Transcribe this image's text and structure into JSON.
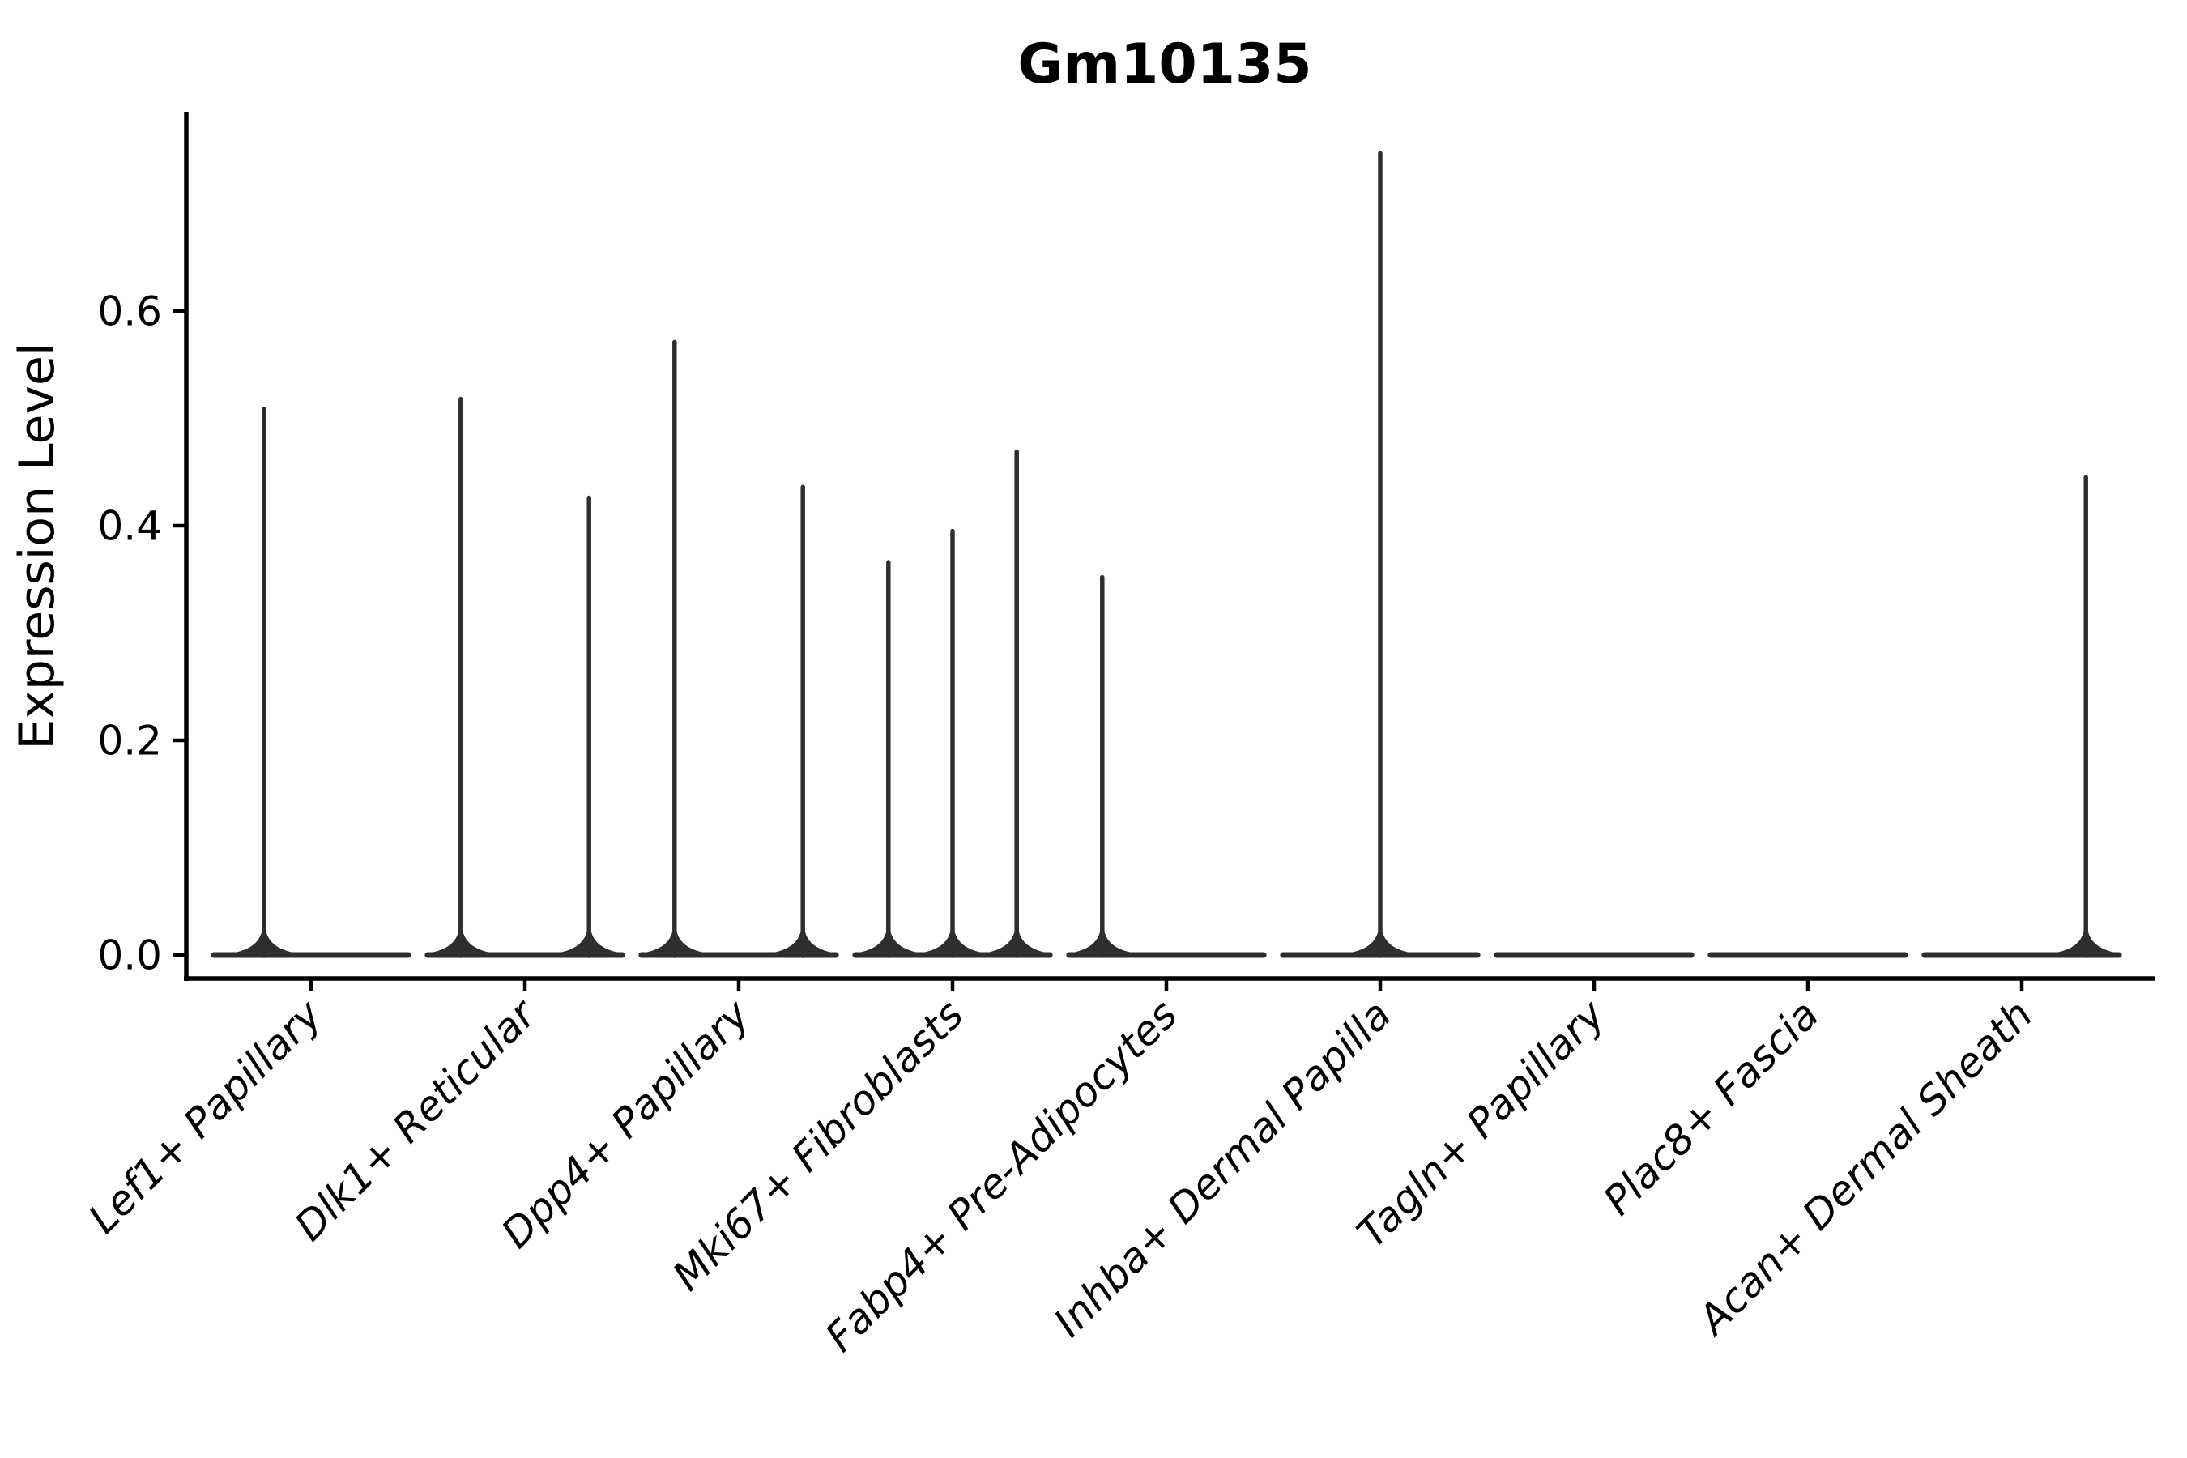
{
  "figure": {
    "title": "Gm10135",
    "background_color": "#ffffff"
  },
  "chart_data": {
    "type": "violin",
    "title": "Gm10135",
    "xlabel": "",
    "ylabel": "Expression Level",
    "categories": [
      "Lef1+ Papillary",
      "Dlk1+ Reticular",
      "Dpp4+ Papillary",
      "Mki67+ Fibroblasts",
      "Fabp4+ Pre-Adipocytes",
      "Inhba+ Dermal Papilla",
      "Tagln+ Papillary",
      "Plac8+ Fascia",
      "Acan+ Dermal Sheath"
    ],
    "yticks": [
      0.0,
      0.2,
      0.4,
      0.6
    ],
    "ytick_labels": [
      "0.0",
      "0.2",
      "0.4",
      "0.6"
    ],
    "ylim": [
      -0.022,
      0.783
    ],
    "grid": false,
    "legend_position": "none",
    "violin_color": "#2e2e2e",
    "axis_color": "#000000",
    "baseline_halfwidth_units": 0.455,
    "series": [
      {
        "name": "Lef1+ Papillary",
        "baseline_value": 0.0,
        "spikes": [
          {
            "offset_units": -0.22,
            "max_expression": 0.509
          }
        ]
      },
      {
        "name": "Dlk1+ Reticular",
        "baseline_value": 0.0,
        "spikes": [
          {
            "offset_units": -0.3,
            "max_expression": 0.518
          },
          {
            "offset_units": 0.3,
            "max_expression": 0.426
          }
        ]
      },
      {
        "name": "Dpp4+ Papillary",
        "baseline_value": 0.0,
        "spikes": [
          {
            "offset_units": -0.3,
            "max_expression": 0.571
          },
          {
            "offset_units": 0.3,
            "max_expression": 0.436
          }
        ]
      },
      {
        "name": "Mki67+ Fibroblasts",
        "baseline_value": 0.0,
        "spikes": [
          {
            "offset_units": -0.3,
            "max_expression": 0.366
          },
          {
            "offset_units": 0.0,
            "max_expression": 0.395
          },
          {
            "offset_units": 0.3,
            "max_expression": 0.469
          }
        ]
      },
      {
        "name": "Fabp4+ Pre-Adipocytes",
        "baseline_value": 0.0,
        "spikes": [
          {
            "offset_units": -0.3,
            "max_expression": 0.352
          }
        ]
      },
      {
        "name": "Inhba+ Dermal Papilla",
        "baseline_value": 0.0,
        "spikes": [
          {
            "offset_units": 0.0,
            "max_expression": 0.747
          }
        ]
      },
      {
        "name": "Tagln+ Papillary",
        "baseline_value": 0.0,
        "spikes": []
      },
      {
        "name": "Plac8+ Fascia",
        "baseline_value": 0.0,
        "spikes": []
      },
      {
        "name": "Acan+ Dermal Sheath",
        "baseline_value": 0.0,
        "spikes": [
          {
            "offset_units": 0.3,
            "max_expression": 0.445
          }
        ]
      }
    ]
  }
}
